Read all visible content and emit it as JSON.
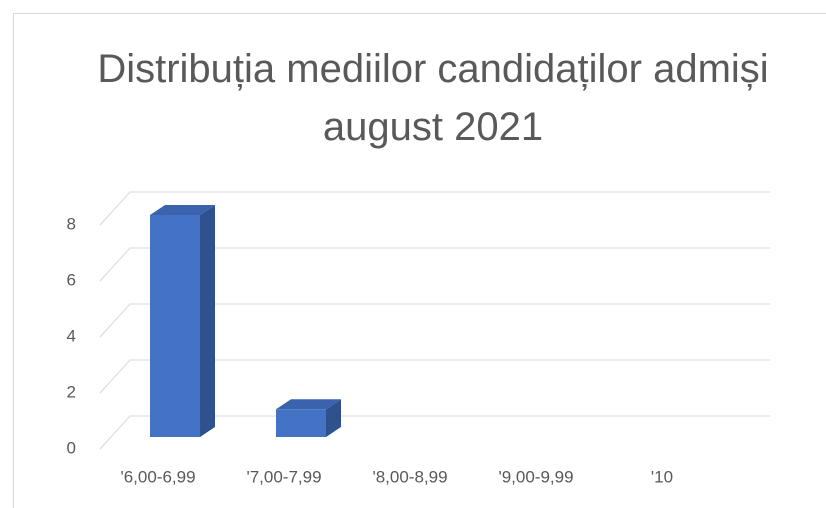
{
  "chart_data": {
    "type": "bar3d",
    "title": "Distribuția mediilor candidaților admiși august 2021",
    "categories": [
      "'6,00-6,99",
      "'7,00-7,99",
      "'8,00-8,99",
      "'9,00-9,99",
      "'10"
    ],
    "values": [
      8,
      1,
      0,
      0,
      0
    ],
    "color": "#4472c4",
    "ylim": [
      0,
      8
    ],
    "yticks": [
      0,
      2,
      4,
      6,
      8
    ],
    "grid": true
  }
}
